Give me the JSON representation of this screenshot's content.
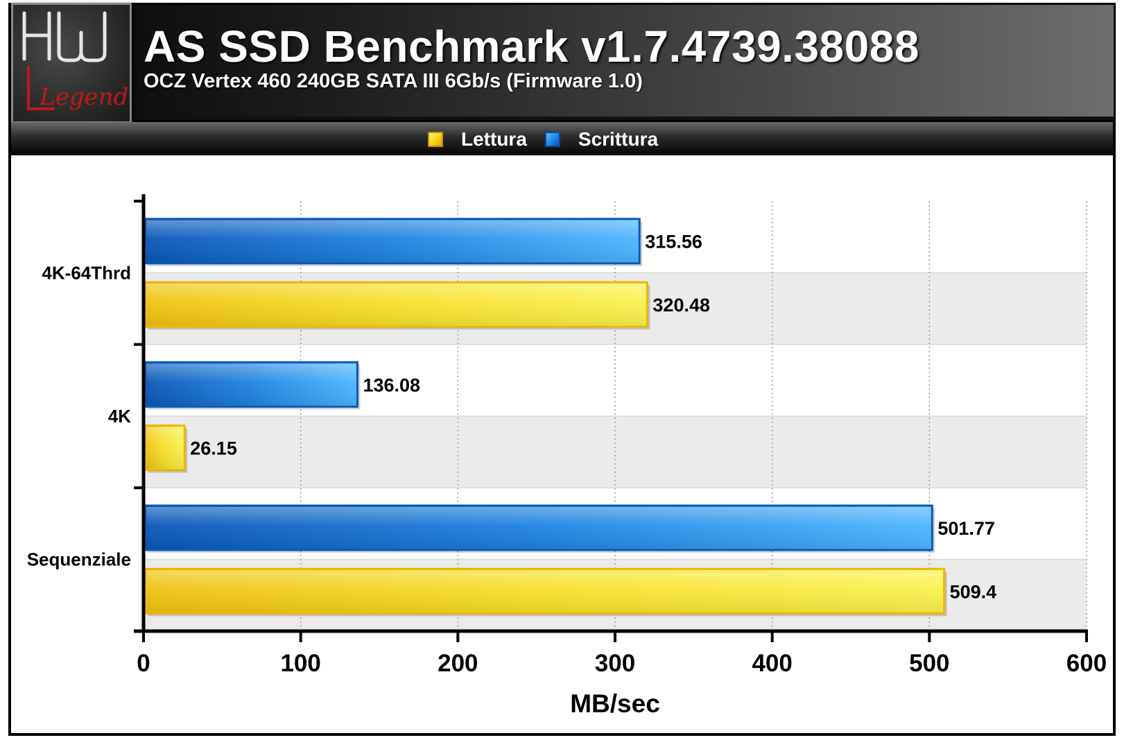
{
  "header": {
    "title": "AS SSD Benchmark v1.7.4739.38088",
    "subtitle": "OCZ Vertex 460 240GB SATA III 6Gb/s (Firmware 1.0)"
  },
  "logo": {
    "text_top": "HW",
    "text_bottom": "Legend"
  },
  "colors": {
    "read": "#f2cc1a",
    "write": "#1a7fe0",
    "band_alt": "#ebebeb",
    "band": "#ffffff"
  },
  "chart_data": {
    "type": "bar",
    "orientation": "horizontal",
    "categories": [
      "4K-64Thrd",
      "4K",
      "Sequenziale"
    ],
    "series": [
      {
        "name": "Scrittura",
        "values": [
          315.56,
          136.08,
          501.77
        ]
      },
      {
        "name": "Lettura",
        "values": [
          320.48,
          26.15,
          509.4
        ]
      }
    ],
    "data_labels": {
      "Scrittura": [
        "315.56",
        "136.08",
        "501.77"
      ],
      "Lettura": [
        "320.48",
        "26.15",
        "509.4"
      ]
    },
    "xlabel": "MB/sec",
    "ylabel": "",
    "xlim": [
      0,
      600
    ],
    "xticks": [
      0,
      100,
      200,
      300,
      400,
      500,
      600
    ],
    "xtick_labels": [
      "0",
      "100",
      "200",
      "300",
      "400",
      "500",
      "600"
    ],
    "grid": "vertical dotted",
    "legend_placement": "top-center"
  }
}
